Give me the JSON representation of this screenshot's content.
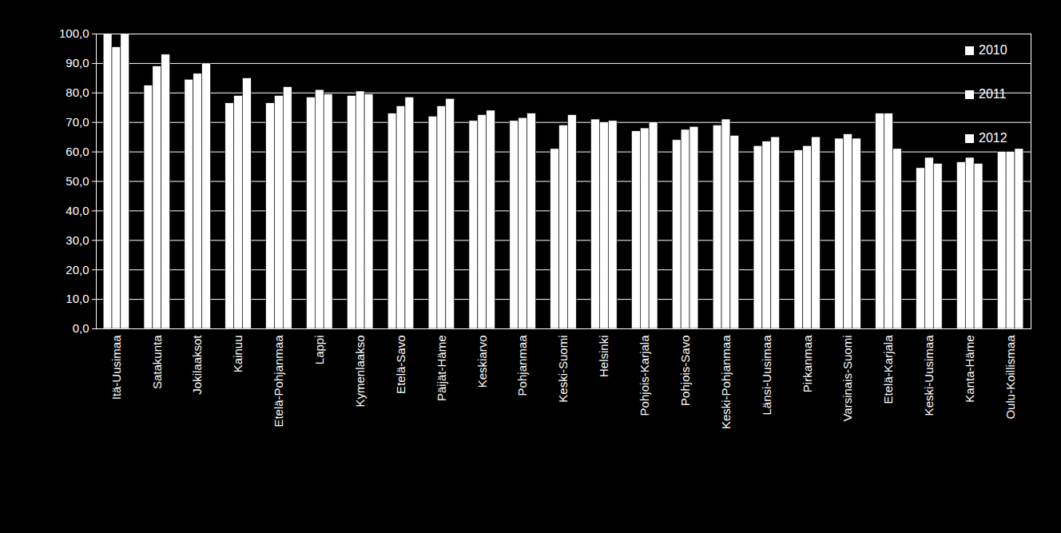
{
  "chart_data": {
    "type": "bar",
    "grid": true,
    "legend": "top-right",
    "categories": [
      "Itä-Uusimaa",
      "Satakunta",
      "Jokilaaksot",
      "Kainuu",
      "Etelä-Pohjanmaa",
      "Lappi",
      "Kymenlaakso",
      "Etelä-Savo",
      "Päijät-Häme",
      "Keskiarvo",
      "Pohjanmaa",
      "Keski-Suomi",
      "Helsinki",
      "Pohjois-Karjala",
      "Pohjois-Savo",
      "Keski-Pohjanmaa",
      "Länsi-Uusimaa",
      "Pirkanmaa",
      "Varsinais-Suomi",
      "Etelä-Karjala",
      "Keski-Uusimaa",
      "Kanta-Häme",
      "Oulu-Koillismaa"
    ],
    "series": [
      {
        "name": "2010",
        "color": "#ffffff",
        "values": [
          100,
          82.5,
          84.5,
          76.5,
          76.5,
          78.5,
          79,
          73,
          72,
          70.5,
          70.5,
          61,
          71,
          67,
          64,
          69,
          62,
          60.5,
          64.5,
          73,
          54.5,
          56.5,
          60
        ]
      },
      {
        "name": "2011",
        "color": "#ffffff",
        "values": [
          95.5,
          89,
          86.5,
          79,
          79,
          81,
          80.5,
          75.5,
          75.5,
          72.5,
          71.5,
          69,
          70,
          68,
          67.5,
          71,
          63.5,
          62,
          66,
          73,
          58,
          58,
          60
        ]
      },
      {
        "name": "2012",
        "color": "#ffffff",
        "values": [
          100,
          93,
          90,
          85,
          82,
          79.5,
          79.5,
          78.5,
          78,
          74,
          73,
          72.5,
          70.5,
          70,
          68.5,
          65.5,
          65,
          65,
          64.5,
          61,
          56,
          56,
          61
        ]
      }
    ],
    "ylim": [
      0,
      100
    ],
    "yticks": [
      {
        "value": 0,
        "label": "0,0"
      },
      {
        "value": 10,
        "label": "10,0"
      },
      {
        "value": 20,
        "label": "20,0"
      },
      {
        "value": 30,
        "label": "30,0"
      },
      {
        "value": 40,
        "label": "40,0"
      },
      {
        "value": 50,
        "label": "50,0"
      },
      {
        "value": 60,
        "label": "60,0"
      },
      {
        "value": 70,
        "label": "70,0"
      },
      {
        "value": 80,
        "label": "80,0"
      },
      {
        "value": 90,
        "label": "90,0"
      },
      {
        "value": 100,
        "label": "100,0"
      }
    ]
  }
}
